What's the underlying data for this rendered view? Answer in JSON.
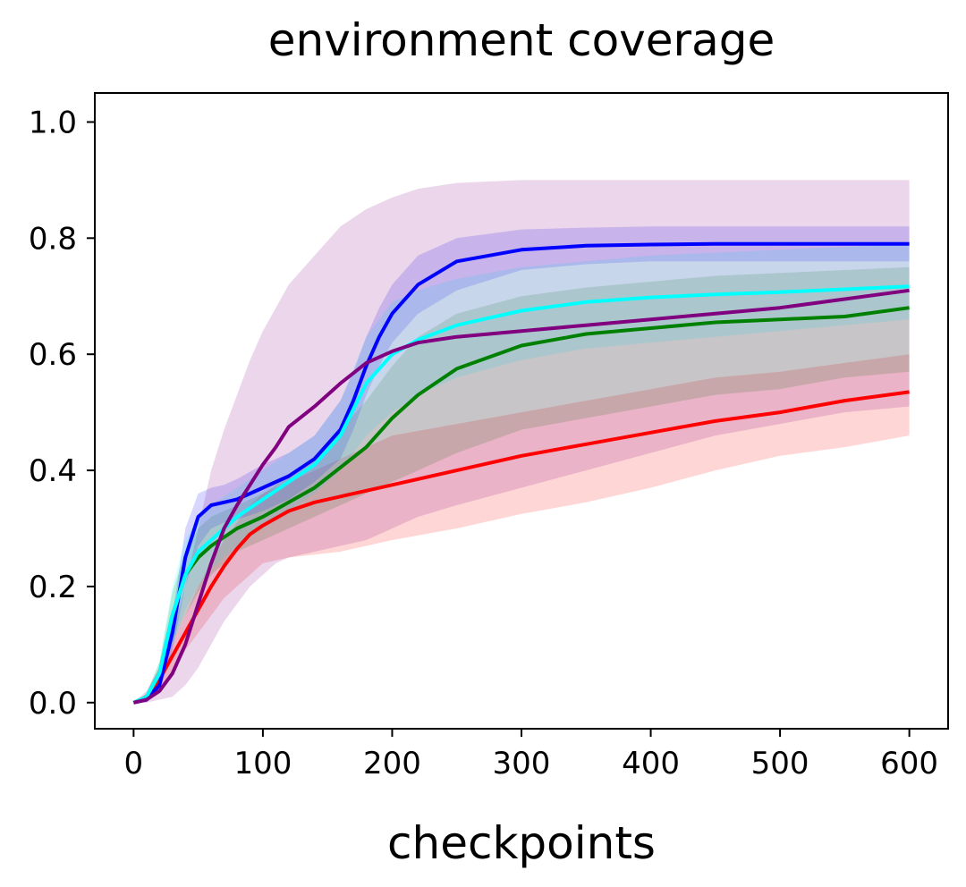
{
  "chart_data": {
    "type": "line",
    "title": "environment coverage",
    "xlabel": "checkpoints",
    "ylabel": "",
    "xlim": [
      -30,
      630
    ],
    "ylim": [
      -0.045,
      1.05
    ],
    "xticks": [
      0,
      100,
      200,
      300,
      400,
      500,
      600
    ],
    "xtick_labels": [
      "0",
      "100",
      "200",
      "300",
      "400",
      "500",
      "600"
    ],
    "yticks": [
      0.0,
      0.2,
      0.4,
      0.6,
      0.8,
      1.0
    ],
    "ytick_labels": [
      "0.0",
      "0.2",
      "0.4",
      "0.6",
      "0.8",
      "1.0"
    ],
    "grid": false,
    "legend": "none",
    "band_opacity": 0.16,
    "series": [
      {
        "color": "#ff0000",
        "x": [
          0,
          10,
          20,
          30,
          40,
          50,
          60,
          70,
          80,
          90,
          100,
          120,
          140,
          160,
          180,
          200,
          250,
          300,
          350,
          400,
          450,
          500,
          550,
          600
        ],
        "values": [
          0.0,
          0.01,
          0.04,
          0.08,
          0.12,
          0.16,
          0.2,
          0.235,
          0.265,
          0.29,
          0.305,
          0.33,
          0.345,
          0.355,
          0.365,
          0.375,
          0.4,
          0.425,
          0.445,
          0.465,
          0.485,
          0.5,
          0.52,
          0.535
        ],
        "lower": [
          0.0,
          0.005,
          0.02,
          0.05,
          0.09,
          0.12,
          0.15,
          0.18,
          0.2,
          0.22,
          0.24,
          0.25,
          0.255,
          0.26,
          0.27,
          0.28,
          0.3,
          0.325,
          0.345,
          0.37,
          0.4,
          0.425,
          0.44,
          0.46
        ],
        "upper": [
          0.0,
          0.015,
          0.06,
          0.1,
          0.15,
          0.2,
          0.24,
          0.28,
          0.31,
          0.34,
          0.36,
          0.38,
          0.4,
          0.42,
          0.44,
          0.46,
          0.48,
          0.5,
          0.52,
          0.54,
          0.56,
          0.57,
          0.585,
          0.6
        ]
      },
      {
        "color": "#008000",
        "x": [
          0,
          10,
          20,
          30,
          40,
          50,
          60,
          80,
          100,
          120,
          140,
          160,
          180,
          200,
          220,
          250,
          300,
          350,
          400,
          450,
          500,
          550,
          600
        ],
        "values": [
          0.0,
          0.01,
          0.05,
          0.15,
          0.22,
          0.25,
          0.27,
          0.3,
          0.32,
          0.345,
          0.37,
          0.405,
          0.44,
          0.49,
          0.53,
          0.575,
          0.615,
          0.635,
          0.645,
          0.655,
          0.66,
          0.665,
          0.68
        ],
        "lower": [
          0.0,
          0.005,
          0.03,
          0.1,
          0.15,
          0.19,
          0.22,
          0.26,
          0.28,
          0.3,
          0.32,
          0.34,
          0.36,
          0.38,
          0.4,
          0.43,
          0.47,
          0.49,
          0.51,
          0.53,
          0.54,
          0.56,
          0.57
        ],
        "upper": [
          0.0,
          0.015,
          0.07,
          0.19,
          0.26,
          0.3,
          0.32,
          0.34,
          0.36,
          0.39,
          0.42,
          0.47,
          0.52,
          0.58,
          0.63,
          0.67,
          0.7,
          0.715,
          0.725,
          0.735,
          0.74,
          0.745,
          0.75
        ]
      },
      {
        "color": "#0000ff",
        "x": [
          0,
          10,
          20,
          30,
          40,
          50,
          60,
          70,
          80,
          100,
          120,
          140,
          160,
          170,
          180,
          190,
          200,
          220,
          250,
          300,
          350,
          400,
          450,
          500,
          550,
          600
        ],
        "values": [
          0.0,
          0.005,
          0.03,
          0.12,
          0.25,
          0.32,
          0.34,
          0.345,
          0.35,
          0.37,
          0.39,
          0.42,
          0.47,
          0.52,
          0.58,
          0.63,
          0.67,
          0.72,
          0.76,
          0.78,
          0.787,
          0.789,
          0.79,
          0.79,
          0.79,
          0.79
        ],
        "lower": [
          0.0,
          0.0,
          0.02,
          0.09,
          0.2,
          0.27,
          0.3,
          0.31,
          0.315,
          0.33,
          0.35,
          0.38,
          0.42,
          0.47,
          0.53,
          0.58,
          0.62,
          0.67,
          0.71,
          0.745,
          0.755,
          0.76,
          0.76,
          0.76,
          0.76,
          0.76
        ],
        "upper": [
          0.0,
          0.01,
          0.04,
          0.15,
          0.3,
          0.36,
          0.37,
          0.375,
          0.385,
          0.41,
          0.43,
          0.46,
          0.52,
          0.57,
          0.63,
          0.68,
          0.72,
          0.77,
          0.8,
          0.815,
          0.818,
          0.82,
          0.82,
          0.82,
          0.82,
          0.82
        ]
      },
      {
        "color": "#00ffff",
        "x": [
          0,
          10,
          20,
          30,
          40,
          50,
          60,
          80,
          100,
          120,
          140,
          160,
          180,
          200,
          220,
          250,
          300,
          350,
          400,
          450,
          500,
          550,
          600
        ],
        "values": [
          0.0,
          0.01,
          0.05,
          0.15,
          0.22,
          0.26,
          0.28,
          0.32,
          0.35,
          0.38,
          0.41,
          0.46,
          0.55,
          0.6,
          0.625,
          0.65,
          0.675,
          0.69,
          0.698,
          0.703,
          0.707,
          0.712,
          0.717
        ],
        "lower": [
          0.0,
          0.005,
          0.03,
          0.1,
          0.16,
          0.2,
          0.23,
          0.27,
          0.3,
          0.33,
          0.36,
          0.4,
          0.46,
          0.5,
          0.53,
          0.56,
          0.59,
          0.61,
          0.62,
          0.63,
          0.64,
          0.65,
          0.66
        ],
        "upper": [
          0.0,
          0.015,
          0.07,
          0.2,
          0.28,
          0.32,
          0.34,
          0.37,
          0.4,
          0.43,
          0.46,
          0.52,
          0.63,
          0.69,
          0.71,
          0.73,
          0.75,
          0.76,
          0.77,
          0.775,
          0.78,
          0.785,
          0.79
        ]
      },
      {
        "color": "#800080",
        "x": [
          0,
          10,
          20,
          30,
          40,
          50,
          60,
          70,
          80,
          90,
          100,
          110,
          120,
          140,
          160,
          180,
          200,
          220,
          250,
          300,
          350,
          400,
          450,
          500,
          550,
          600
        ],
        "values": [
          0.0,
          0.005,
          0.02,
          0.05,
          0.1,
          0.17,
          0.24,
          0.3,
          0.34,
          0.375,
          0.41,
          0.44,
          0.475,
          0.51,
          0.55,
          0.585,
          0.605,
          0.62,
          0.63,
          0.64,
          0.65,
          0.66,
          0.67,
          0.68,
          0.695,
          0.71
        ],
        "lower": [
          0.0,
          0.0,
          0.005,
          0.01,
          0.03,
          0.06,
          0.1,
          0.14,
          0.17,
          0.2,
          0.22,
          0.24,
          0.25,
          0.26,
          0.27,
          0.28,
          0.3,
          0.32,
          0.34,
          0.37,
          0.4,
          0.43,
          0.46,
          0.48,
          0.5,
          0.51
        ],
        "upper": [
          0.0,
          0.02,
          0.06,
          0.12,
          0.2,
          0.3,
          0.4,
          0.47,
          0.53,
          0.59,
          0.64,
          0.68,
          0.72,
          0.77,
          0.82,
          0.85,
          0.87,
          0.885,
          0.895,
          0.9,
          0.9,
          0.9,
          0.9,
          0.9,
          0.9,
          0.9
        ]
      }
    ]
  }
}
